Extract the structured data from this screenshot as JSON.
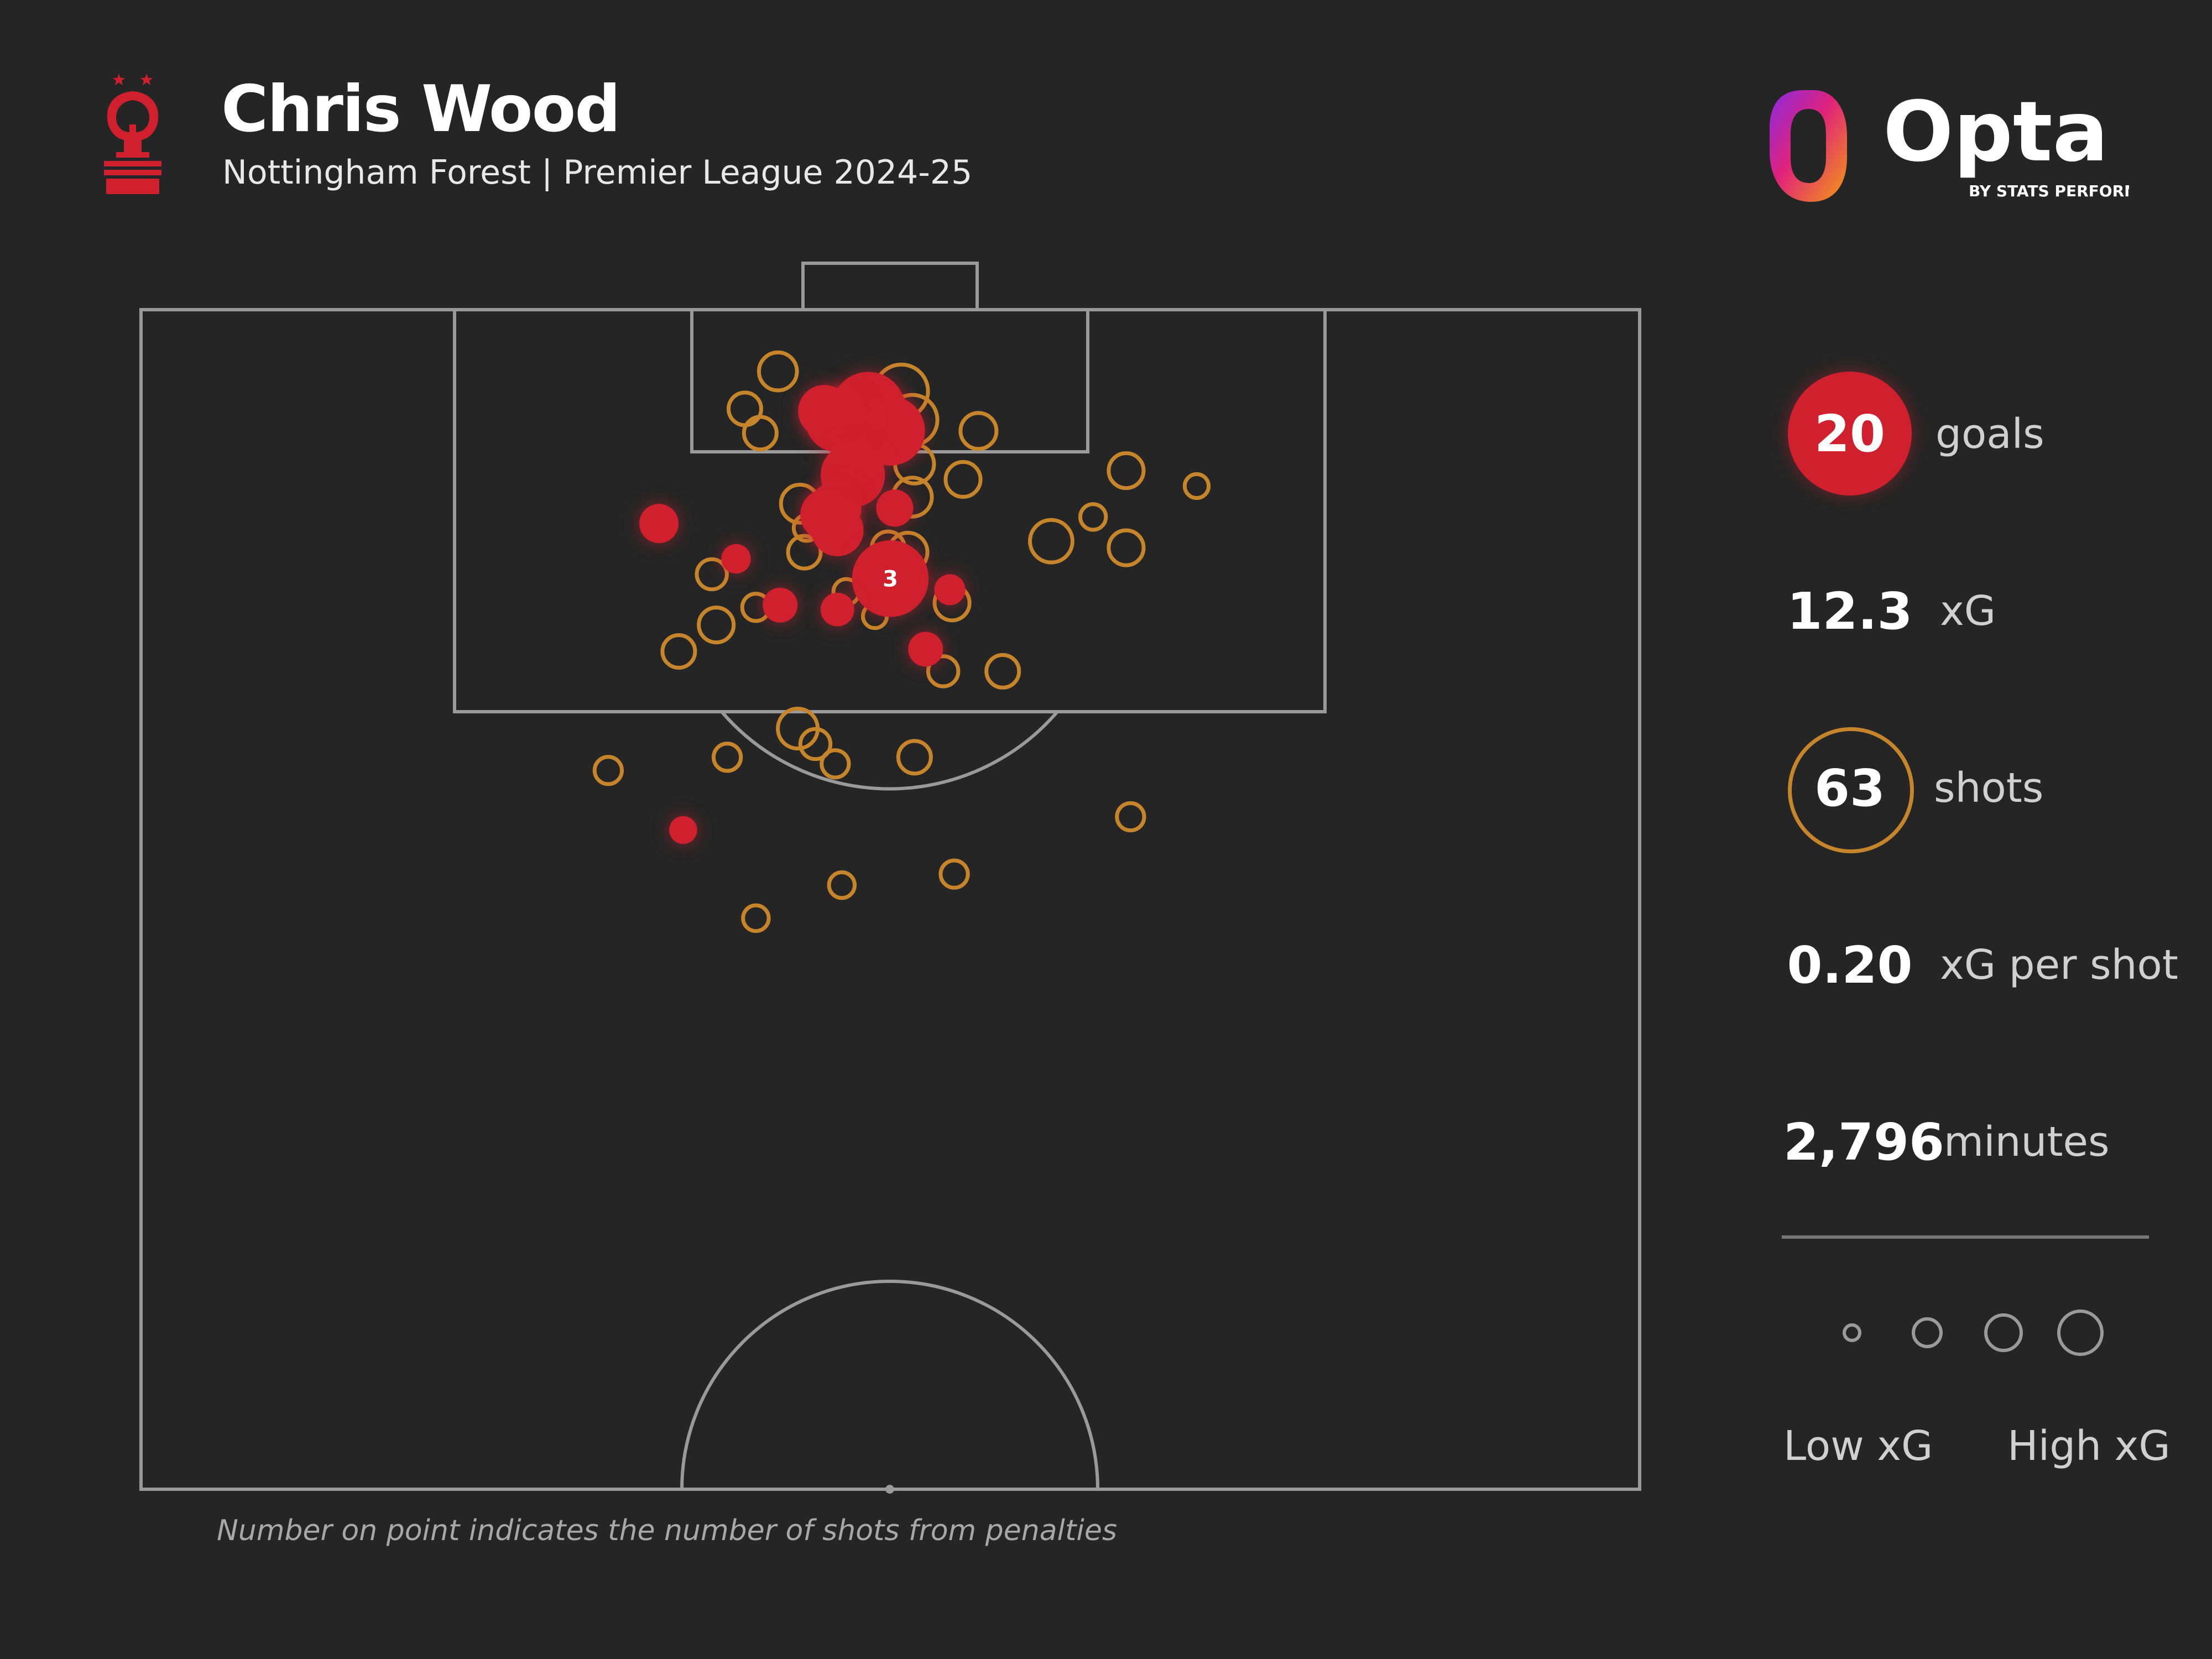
{
  "header": {
    "player_name": "Chris Wood",
    "subtitle": "Nottingham Forest | Premier League 2024-25",
    "club_crest": "nottingham-forest-crest",
    "brand_logo": "opta-logo",
    "brand_name": "Opta",
    "brand_tagline": "BY STATS PERFORM"
  },
  "stats": {
    "goals_value": "20",
    "goals_label": "goals",
    "xg_value": "12.3",
    "xg_label": "xG",
    "shots_value": "63",
    "shots_label": "shots",
    "xg_per_shot_value": "0.20",
    "xg_per_shot_label": "xG per shot",
    "minutes_value": "2,796",
    "minutes_label": "minutes"
  },
  "legend": {
    "low_label": "Low xG",
    "high_label": "High xG"
  },
  "footnote": "Number on point indicates the number of shots from penalties",
  "colors": {
    "background": "#252525",
    "goal": "#d0202e",
    "shot": "#c6852a",
    "pitch_lines": "#9a9a9a"
  },
  "chart_data": {
    "type": "scatter",
    "title": "",
    "description_encoding": {
      "x": "pitch width in metres (0-68)",
      "y": "distance from goal line in metres",
      "xg": "marker size"
    },
    "xlim": [
      0,
      68
    ],
    "ylim": [
      0,
      53.5
    ],
    "series": [
      {
        "name": "goals",
        "points": [
          {
            "x": 33.0,
            "y": 4.5,
            "xg": 0.7
          },
          {
            "x": 34.0,
            "y": 5.5,
            "xg": 0.6
          },
          {
            "x": 31.6,
            "y": 5.0,
            "xg": 0.5
          },
          {
            "x": 31.0,
            "y": 4.6,
            "xg": 0.3
          },
          {
            "x": 32.3,
            "y": 7.5,
            "xg": 0.5
          },
          {
            "x": 31.5,
            "y": 9.0,
            "xg": 0.3
          },
          {
            "x": 31.1,
            "y": 9.3,
            "xg": 0.3
          },
          {
            "x": 31.6,
            "y": 10.0,
            "xg": 0.3
          },
          {
            "x": 34.2,
            "y": 9.0,
            "xg": 0.12
          },
          {
            "x": 23.5,
            "y": 9.7,
            "xg": 0.14
          },
          {
            "x": 27.0,
            "y": 11.3,
            "xg": 0.06
          },
          {
            "x": 34.0,
            "y": 12.2,
            "xg": 0.76,
            "penalties": "3"
          },
          {
            "x": 36.7,
            "y": 12.7,
            "xg": 0.07
          },
          {
            "x": 29.0,
            "y": 13.4,
            "xg": 0.1
          },
          {
            "x": 31.6,
            "y": 13.6,
            "xg": 0.09
          },
          {
            "x": 35.6,
            "y": 15.4,
            "xg": 0.1
          },
          {
            "x": 24.6,
            "y": 23.6,
            "xg": 0.05
          }
        ]
      },
      {
        "name": "shots",
        "points": [
          {
            "x": 28.9,
            "y": 2.8,
            "xg": 0.15
          },
          {
            "x": 27.4,
            "y": 4.5,
            "xg": 0.1
          },
          {
            "x": 28.1,
            "y": 5.6,
            "xg": 0.1
          },
          {
            "x": 34.5,
            "y": 3.7,
            "xg": 0.35
          },
          {
            "x": 35.0,
            "y": 5.0,
            "xg": 0.3
          },
          {
            "x": 38.0,
            "y": 5.5,
            "xg": 0.13
          },
          {
            "x": 35.1,
            "y": 7.0,
            "xg": 0.16
          },
          {
            "x": 37.3,
            "y": 7.7,
            "xg": 0.12
          },
          {
            "x": 44.7,
            "y": 7.3,
            "xg": 0.12
          },
          {
            "x": 47.9,
            "y": 8.0,
            "xg": 0.04
          },
          {
            "x": 35.0,
            "y": 8.5,
            "xg": 0.16
          },
          {
            "x": 31.7,
            "y": 8.3,
            "xg": 0.06
          },
          {
            "x": 29.9,
            "y": 8.8,
            "xg": 0.15
          },
          {
            "x": 30.2,
            "y": 9.9,
            "xg": 0.05
          },
          {
            "x": 43.2,
            "y": 9.4,
            "xg": 0.05
          },
          {
            "x": 41.3,
            "y": 10.5,
            "xg": 0.2
          },
          {
            "x": 44.7,
            "y": 10.8,
            "xg": 0.12
          },
          {
            "x": 33.9,
            "y": 10.8,
            "xg": 0.1
          },
          {
            "x": 34.8,
            "y": 11.0,
            "xg": 0.16
          },
          {
            "x": 30.1,
            "y": 11.0,
            "xg": 0.1
          },
          {
            "x": 25.9,
            "y": 12.0,
            "xg": 0.08
          },
          {
            "x": 32.0,
            "y": 12.8,
            "xg": 0.05
          },
          {
            "x": 36.8,
            "y": 13.3,
            "xg": 0.12
          },
          {
            "x": 27.9,
            "y": 13.5,
            "xg": 0.06
          },
          {
            "x": 33.3,
            "y": 13.9,
            "xg": 0.04
          },
          {
            "x": 26.1,
            "y": 14.3,
            "xg": 0.12
          },
          {
            "x": 24.4,
            "y": 15.5,
            "xg": 0.1
          },
          {
            "x": 36.4,
            "y": 16.4,
            "xg": 0.08
          },
          {
            "x": 39.1,
            "y": 16.4,
            "xg": 0.1
          },
          {
            "x": 29.8,
            "y": 19.0,
            "xg": 0.17
          },
          {
            "x": 30.6,
            "y": 19.7,
            "xg": 0.08
          },
          {
            "x": 26.6,
            "y": 20.3,
            "xg": 0.06
          },
          {
            "x": 31.5,
            "y": 20.6,
            "xg": 0.06
          },
          {
            "x": 35.1,
            "y": 20.3,
            "xg": 0.1
          },
          {
            "x": 21.2,
            "y": 20.9,
            "xg": 0.06
          },
          {
            "x": 44.9,
            "y": 23.0,
            "xg": 0.06
          },
          {
            "x": 36.9,
            "y": 25.6,
            "xg": 0.06
          },
          {
            "x": 31.8,
            "y": 26.1,
            "xg": 0.05
          },
          {
            "x": 27.9,
            "y": 27.6,
            "xg": 0.05
          }
        ]
      }
    ],
    "annotations": [
      "Number on point indicates the number of shots from penalties"
    ]
  }
}
